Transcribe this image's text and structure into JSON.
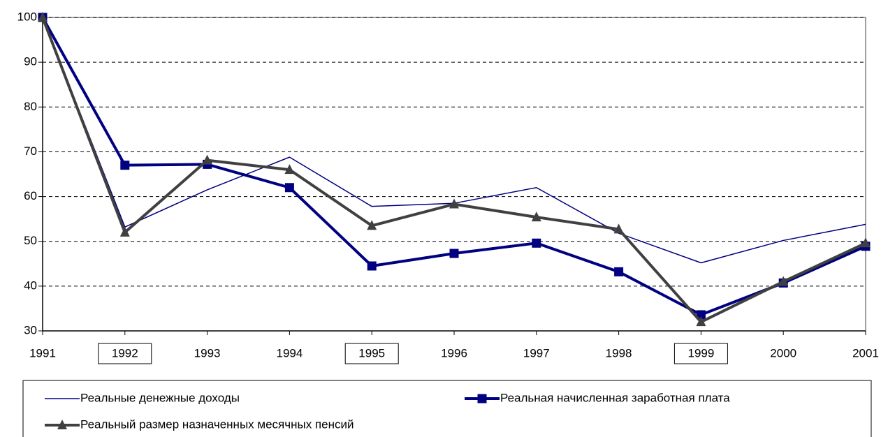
{
  "chart_data": {
    "type": "line",
    "x": [
      1991,
      1992,
      1993,
      1994,
      1995,
      1996,
      1997,
      1998,
      1999,
      2000,
      2001
    ],
    "xlim": [
      1991,
      2001
    ],
    "xticks": [
      1991,
      1992,
      1993,
      1994,
      1995,
      1996,
      1997,
      1998,
      1999,
      2000,
      2001
    ],
    "xtick_boxed": [
      false,
      true,
      false,
      false,
      true,
      false,
      false,
      false,
      true,
      false,
      false
    ],
    "ylim": [
      30,
      100
    ],
    "yticks": [
      30,
      40,
      50,
      60,
      70,
      80,
      90,
      100
    ],
    "grid": true,
    "legend": "bottom",
    "series": [
      {
        "name": "Реальные денежные доходы",
        "color": "#000080",
        "width": 1.5,
        "marker": "none",
        "values": [
          100,
          53.2,
          61.5,
          68.8,
          57.8,
          58.5,
          62,
          51.8,
          45.2,
          50.2,
          53.8
        ]
      },
      {
        "name": "Реальная начисленная заработная плата",
        "color": "#000080",
        "width": 4,
        "marker": "square",
        "values": [
          100,
          67,
          67.2,
          62,
          44.5,
          47.3,
          49.6,
          43.2,
          33.6,
          40.7,
          48.9
        ]
      },
      {
        "name": "Реальный размер назначенных месячных пенсий",
        "color": "#404040",
        "width": 4,
        "marker": "triangle",
        "values": [
          100,
          52,
          68.1,
          66,
          53.5,
          58.3,
          55.4,
          52.7,
          32,
          41,
          49.6
        ]
      }
    ]
  }
}
